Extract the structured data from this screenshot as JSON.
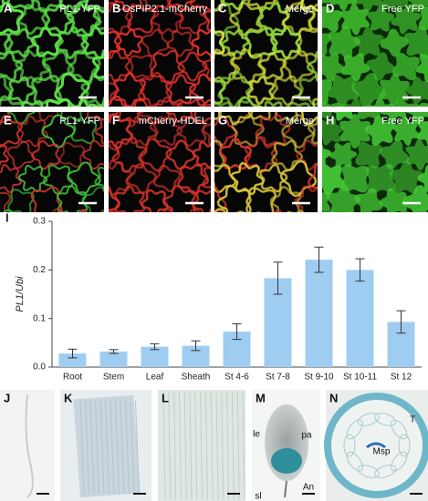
{
  "panels": [
    {
      "label": "A",
      "caption": "PL1-YFP"
    },
    {
      "label": "B",
      "caption": "OsPIP2.1-mCherry"
    },
    {
      "label": "C",
      "caption": "Merge"
    },
    {
      "label": "D",
      "caption": "Free YFP"
    },
    {
      "label": "E",
      "caption": "PL1-YFP"
    },
    {
      "label": "F",
      "caption": "mCherry-HDEL"
    },
    {
      "label": "G",
      "caption": "Merge"
    },
    {
      "label": "H",
      "caption": "Free YFP"
    }
  ],
  "chart_data": {
    "type": "bar",
    "panel_label": "I",
    "y_label": "PL1/Ubi",
    "categories": [
      "Root",
      "Stem",
      "Leaf",
      "Sheath",
      "St 4-6",
      "St 7-8",
      "St 9-10",
      "St 10-11",
      "St 12"
    ],
    "values": [
      0.028,
      0.032,
      0.042,
      0.044,
      0.073,
      0.183,
      0.221,
      0.2,
      0.093
    ],
    "errors": [
      0.009,
      0.004,
      0.006,
      0.01,
      0.016,
      0.033,
      0.026,
      0.023,
      0.023
    ],
    "color": "#9fcdf2",
    "ylim": [
      0,
      0.3
    ],
    "yticks": [
      {
        "value": 0,
        "label": "0.0"
      },
      0.1,
      0.2,
      0.3
    ]
  },
  "lower_panels": [
    {
      "label": "J"
    },
    {
      "label": "K"
    },
    {
      "label": "L"
    },
    {
      "label": "M",
      "annotations": [
        "le",
        "pa",
        "An",
        "sl"
      ]
    },
    {
      "label": "N",
      "annotations": [
        "T",
        "Msp"
      ]
    }
  ]
}
